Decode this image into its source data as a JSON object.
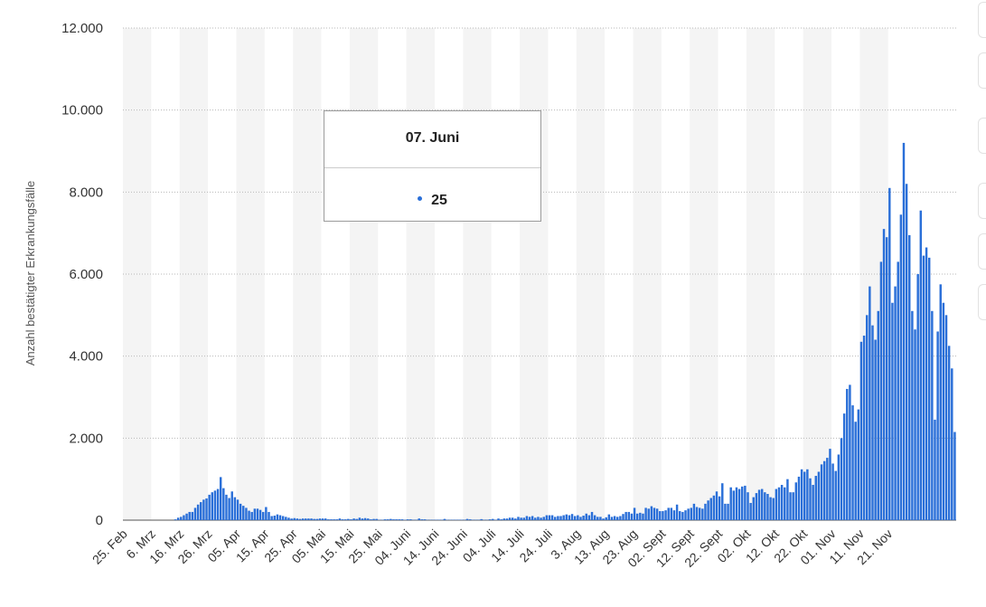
{
  "chart_data": {
    "type": "bar",
    "ylabel": "Anzahl bestätigter Erkrankungsfälle",
    "ylim": [
      0,
      12000
    ],
    "yticks": [
      "0",
      "2.000",
      "4.000",
      "6.000",
      "8.000",
      "10.000",
      "12.000"
    ],
    "x_tick_labels": [
      "25. Feb",
      "6. Mrz",
      "16. Mrz",
      "26. Mrz",
      "05. Apr",
      "15. Apr",
      "25. Apr",
      "05. Mai",
      "15. Mai",
      "25. Mai",
      "04. Juni",
      "14. Juni",
      "24. Juni",
      "04. Juli",
      "14. Juli",
      "24. Juli",
      "3. Aug",
      "13. Aug",
      "23. Aug",
      "02. Sept",
      "12. Sept",
      "22. Sept",
      "02. Okt",
      "12. Okt",
      "22. Okt",
      "01. Nov",
      "11. Nov",
      "21. Nov"
    ],
    "grid": true,
    "bar_color": "#2a6fd8",
    "series": [
      {
        "values": [
          0,
          0,
          0,
          0,
          0,
          0,
          0,
          0,
          0,
          0,
          0,
          0,
          0,
          0,
          0,
          0,
          0,
          0,
          20,
          60,
          80,
          120,
          160,
          200,
          200,
          300,
          380,
          440,
          500,
          530,
          620,
          680,
          720,
          760,
          1050,
          780,
          620,
          540,
          700,
          560,
          500,
          400,
          350,
          300,
          230,
          200,
          280,
          280,
          250,
          200,
          320,
          200,
          100,
          110,
          140,
          120,
          100,
          80,
          60,
          40,
          50,
          40,
          30,
          40,
          40,
          40,
          40,
          30,
          30,
          40,
          40,
          40,
          20,
          20,
          20,
          20,
          40,
          20,
          20,
          30,
          20,
          40,
          30,
          60,
          40,
          50,
          40,
          20,
          30,
          30,
          10,
          10,
          20,
          20,
          30,
          20,
          20,
          20,
          20,
          10,
          20,
          20,
          10,
          10,
          40,
          20,
          20,
          10,
          10,
          10,
          10,
          10,
          10,
          30,
          10,
          10,
          10,
          10,
          10,
          10,
          10,
          30,
          20,
          10,
          10,
          10,
          25,
          10,
          10,
          20,
          30,
          10,
          40,
          20,
          40,
          40,
          60,
          60,
          40,
          80,
          60,
          60,
          100,
          80,
          100,
          60,
          80,
          60,
          80,
          120,
          120,
          120,
          80,
          100,
          100,
          120,
          140,
          120,
          150,
          100,
          120,
          80,
          110,
          160,
          120,
          200,
          120,
          80,
          80,
          40,
          70,
          140,
          80,
          100,
          80,
          100,
          150,
          200,
          200,
          160,
          300,
          160,
          180,
          160,
          300,
          280,
          340,
          300,
          280,
          220,
          220,
          240,
          300,
          300,
          240,
          380,
          220,
          200,
          240,
          280,
          300,
          400,
          320,
          300,
          280,
          400,
          480,
          540,
          600,
          700,
          580,
          900,
          400,
          400,
          800,
          720,
          800,
          760,
          820,
          840,
          680,
          420,
          560,
          660,
          740,
          760,
          680,
          640,
          560,
          540,
          760,
          800,
          860,
          800,
          1000,
          680,
          680,
          920,
          1060,
          1240,
          1180,
          1240,
          1020,
          860,
          1080,
          1180,
          1360,
          1440,
          1520,
          1740,
          1380,
          1200,
          1600,
          2000,
          2600,
          3200,
          3300,
          2800,
          2400,
          2700,
          4350,
          4500,
          5000,
          5700,
          4750,
          4400,
          5100,
          6300,
          7100,
          6900,
          8100,
          5300,
          5700,
          6300,
          7450,
          9200,
          8200,
          6950,
          5100,
          4650,
          6000,
          7550,
          6450,
          6650,
          6400,
          5100,
          2450,
          4600,
          5750,
          5300,
          5000,
          4250,
          3700,
          2150
        ]
      }
    ]
  },
  "tooltip": {
    "date": "07. Juni",
    "value": "25"
  }
}
